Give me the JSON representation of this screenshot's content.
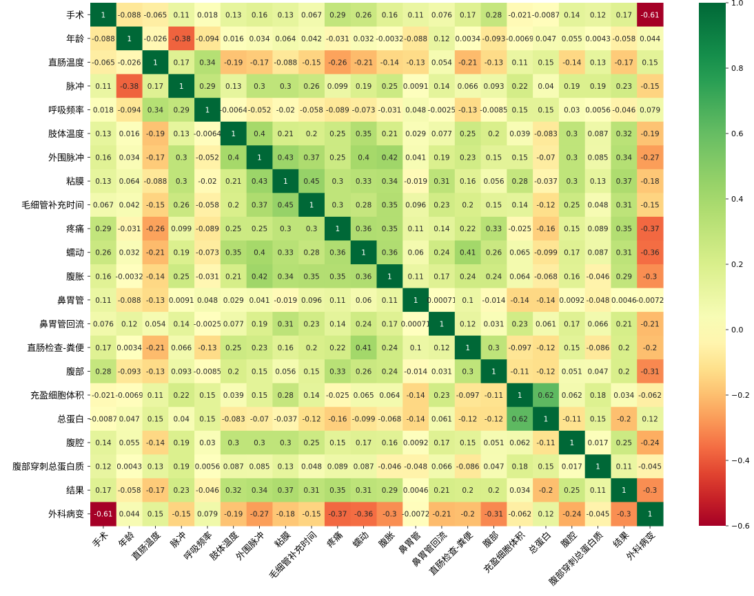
{
  "chart_data": {
    "type": "heatmap",
    "labels": [
      "手术",
      "年龄",
      "直肠温度",
      "脉冲",
      "呼吸频率",
      "肢体温度",
      "外围脉冲",
      "粘膜",
      "毛细管补充时间",
      "疼痛",
      "蠕动",
      "腹胀",
      "鼻胃管",
      "鼻胃管回流",
      "直肠检查-粪便",
      "腹部",
      "充盈细胞体积",
      "总蛋白",
      "腹腔",
      "腹部穿刺总蛋白质",
      "结果",
      "外科病变"
    ],
    "matrix": [
      [
        "1",
        "-0.088",
        "-0.065",
        "0.11",
        "0.018",
        "0.13",
        "0.16",
        "0.13",
        "0.067",
        "0.29",
        "0.26",
        "0.16",
        "0.11",
        "0.076",
        "0.17",
        "0.28",
        "-0.021",
        "-0.0087",
        "0.14",
        "0.12",
        "0.17",
        "-0.61"
      ],
      [
        "-0.088",
        "1",
        "-0.026",
        "-0.38",
        "-0.094",
        "0.016",
        "0.034",
        "0.064",
        "0.042",
        "-0.031",
        "0.032",
        "-0.0032",
        "-0.088",
        "0.12",
        "0.0034",
        "-0.093",
        "-0.0069",
        "0.047",
        "0.055",
        "0.0043",
        "-0.058",
        "0.044"
      ],
      [
        "-0.065",
        "-0.026",
        "1",
        "0.17",
        "0.34",
        "-0.19",
        "-0.17",
        "-0.088",
        "-0.15",
        "-0.26",
        "-0.21",
        "-0.14",
        "-0.13",
        "0.054",
        "-0.21",
        "-0.13",
        "0.11",
        "0.15",
        "-0.14",
        "0.13",
        "-0.17",
        "0.15"
      ],
      [
        "0.11",
        "-0.38",
        "0.17",
        "1",
        "0.29",
        "0.13",
        "0.3",
        "0.3",
        "0.26",
        "0.099",
        "0.19",
        "0.25",
        "0.0091",
        "0.14",
        "0.066",
        "0.093",
        "0.22",
        "0.04",
        "0.19",
        "0.19",
        "0.23",
        "-0.15"
      ],
      [
        "0.018",
        "-0.094",
        "0.34",
        "0.29",
        "1",
        "-0.0064",
        "-0.052",
        "-0.02",
        "-0.058",
        "-0.089",
        "-0.073",
        "-0.031",
        "0.048",
        "-0.0025",
        "-0.13",
        "-0.0085",
        "0.15",
        "0.15",
        "0.03",
        "0.0056",
        "-0.046",
        "0.079"
      ],
      [
        "0.13",
        "0.016",
        "-0.19",
        "0.13",
        "-0.0064",
        "1",
        "0.4",
        "0.21",
        "0.2",
        "0.25",
        "0.35",
        "0.21",
        "0.029",
        "0.077",
        "0.25",
        "0.2",
        "0.039",
        "-0.083",
        "0.3",
        "0.087",
        "0.32",
        "-0.19"
      ],
      [
        "0.16",
        "0.034",
        "-0.17",
        "0.3",
        "-0.052",
        "0.4",
        "1",
        "0.43",
        "0.37",
        "0.25",
        "0.4",
        "0.42",
        "0.041",
        "0.19",
        "0.23",
        "0.15",
        "0.15",
        "-0.07",
        "0.3",
        "0.085",
        "0.34",
        "-0.27"
      ],
      [
        "0.13",
        "0.064",
        "-0.088",
        "0.3",
        "-0.02",
        "0.21",
        "0.43",
        "1",
        "0.45",
        "0.3",
        "0.33",
        "0.34",
        "-0.019",
        "0.31",
        "0.16",
        "0.056",
        "0.28",
        "-0.037",
        "0.3",
        "0.13",
        "0.37",
        "-0.18"
      ],
      [
        "0.067",
        "0.042",
        "-0.15",
        "0.26",
        "-0.058",
        "0.2",
        "0.37",
        "0.45",
        "1",
        "0.3",
        "0.28",
        "0.35",
        "0.096",
        "0.23",
        "0.2",
        "0.15",
        "0.14",
        "-0.12",
        "0.25",
        "0.048",
        "0.31",
        "-0.15"
      ],
      [
        "0.29",
        "-0.031",
        "-0.26",
        "0.099",
        "-0.089",
        "0.25",
        "0.25",
        "0.3",
        "0.3",
        "1",
        "0.36",
        "0.35",
        "0.11",
        "0.14",
        "0.22",
        "0.33",
        "-0.025",
        "-0.16",
        "0.15",
        "0.089",
        "0.35",
        "-0.37"
      ],
      [
        "0.26",
        "0.032",
        "-0.21",
        "0.19",
        "-0.073",
        "0.35",
        "0.4",
        "0.33",
        "0.28",
        "0.36",
        "1",
        "0.36",
        "0.06",
        "0.24",
        "0.41",
        "0.26",
        "0.065",
        "-0.099",
        "0.17",
        "0.087",
        "0.31",
        "-0.36"
      ],
      [
        "0.16",
        "-0.0032",
        "-0.14",
        "0.25",
        "-0.031",
        "0.21",
        "0.42",
        "0.34",
        "0.35",
        "0.35",
        "0.36",
        "1",
        "0.11",
        "0.17",
        "0.24",
        "0.24",
        "0.064",
        "-0.068",
        "0.16",
        "-0.046",
        "0.29",
        "-0.3"
      ],
      [
        "0.11",
        "-0.088",
        "-0.13",
        "0.0091",
        "0.048",
        "0.029",
        "0.041",
        "-0.019",
        "0.096",
        "0.11",
        "0.06",
        "0.11",
        "1",
        "0.00071",
        "0.1",
        "-0.014",
        "-0.14",
        "-0.14",
        "0.0092",
        "-0.048",
        "0.0046",
        "-0.0072"
      ],
      [
        "0.076",
        "0.12",
        "0.054",
        "0.14",
        "-0.0025",
        "0.077",
        "0.19",
        "0.31",
        "0.23",
        "0.14",
        "0.24",
        "0.17",
        "0.00071",
        "1",
        "0.12",
        "0.031",
        "0.23",
        "0.061",
        "0.17",
        "0.066",
        "0.21",
        "-0.21"
      ],
      [
        "0.17",
        "0.0034",
        "-0.21",
        "0.066",
        "-0.13",
        "0.25",
        "0.23",
        "0.16",
        "0.2",
        "0.22",
        "0.41",
        "0.24",
        "0.1",
        "0.12",
        "1",
        "0.3",
        "-0.097",
        "-0.12",
        "0.15",
        "-0.086",
        "0.2",
        "-0.2"
      ],
      [
        "0.28",
        "-0.093",
        "-0.13",
        "0.093",
        "-0.0085",
        "0.2",
        "0.15",
        "0.056",
        "0.15",
        "0.33",
        "0.26",
        "0.24",
        "-0.014",
        "0.031",
        "0.3",
        "1",
        "-0.11",
        "-0.12",
        "0.051",
        "0.047",
        "0.2",
        "-0.31"
      ],
      [
        "-0.021",
        "-0.0069",
        "0.11",
        "0.22",
        "0.15",
        "0.039",
        "0.15",
        "0.28",
        "0.14",
        "-0.025",
        "0.065",
        "0.064",
        "-0.14",
        "0.23",
        "-0.097",
        "-0.11",
        "1",
        "0.62",
        "0.062",
        "0.18",
        "0.034",
        "-0.062"
      ],
      [
        "-0.0087",
        "0.047",
        "0.15",
        "0.04",
        "0.15",
        "-0.083",
        "-0.07",
        "-0.037",
        "-0.12",
        "-0.16",
        "-0.099",
        "-0.068",
        "-0.14",
        "0.061",
        "-0.12",
        "-0.12",
        "0.62",
        "1",
        "-0.11",
        "0.15",
        "-0.2",
        "0.12"
      ],
      [
        "0.14",
        "0.055",
        "-0.14",
        "0.19",
        "0.03",
        "0.3",
        "0.3",
        "0.3",
        "0.25",
        "0.15",
        "0.17",
        "0.16",
        "0.0092",
        "0.17",
        "0.15",
        "0.051",
        "0.062",
        "-0.11",
        "1",
        "0.017",
        "0.25",
        "-0.24"
      ],
      [
        "0.12",
        "0.0043",
        "0.13",
        "0.19",
        "0.0056",
        "0.087",
        "0.085",
        "0.13",
        "0.048",
        "0.089",
        "0.087",
        "-0.046",
        "-0.048",
        "0.066",
        "-0.086",
        "0.047",
        "0.18",
        "0.15",
        "0.017",
        "1",
        "0.11",
        "-0.045"
      ],
      [
        "0.17",
        "-0.058",
        "-0.17",
        "0.23",
        "-0.046",
        "0.32",
        "0.34",
        "0.37",
        "0.31",
        "0.35",
        "0.31",
        "0.29",
        "0.0046",
        "0.21",
        "0.2",
        "0.2",
        "0.034",
        "-0.2",
        "0.25",
        "0.11",
        "1",
        "-0.3"
      ],
      [
        "-0.61",
        "0.044",
        "0.15",
        "-0.15",
        "0.079",
        "-0.19",
        "-0.27",
        "-0.18",
        "-0.15",
        "-0.37",
        "-0.36",
        "-0.3",
        "-0.0072",
        "-0.21",
        "-0.2",
        "-0.31",
        "-0.062",
        "0.12",
        "-0.24",
        "-0.045",
        "-0.3",
        "1"
      ]
    ],
    "colorbar": {
      "vmin": -0.6,
      "vmax": 1.0,
      "ticks": [
        "1.0",
        "0.8",
        "0.6",
        "0.4",
        "0.2",
        "0.0",
        "-0.2",
        "-0.4",
        "-0.6"
      ],
      "colormap": "RdYlGn"
    }
  }
}
